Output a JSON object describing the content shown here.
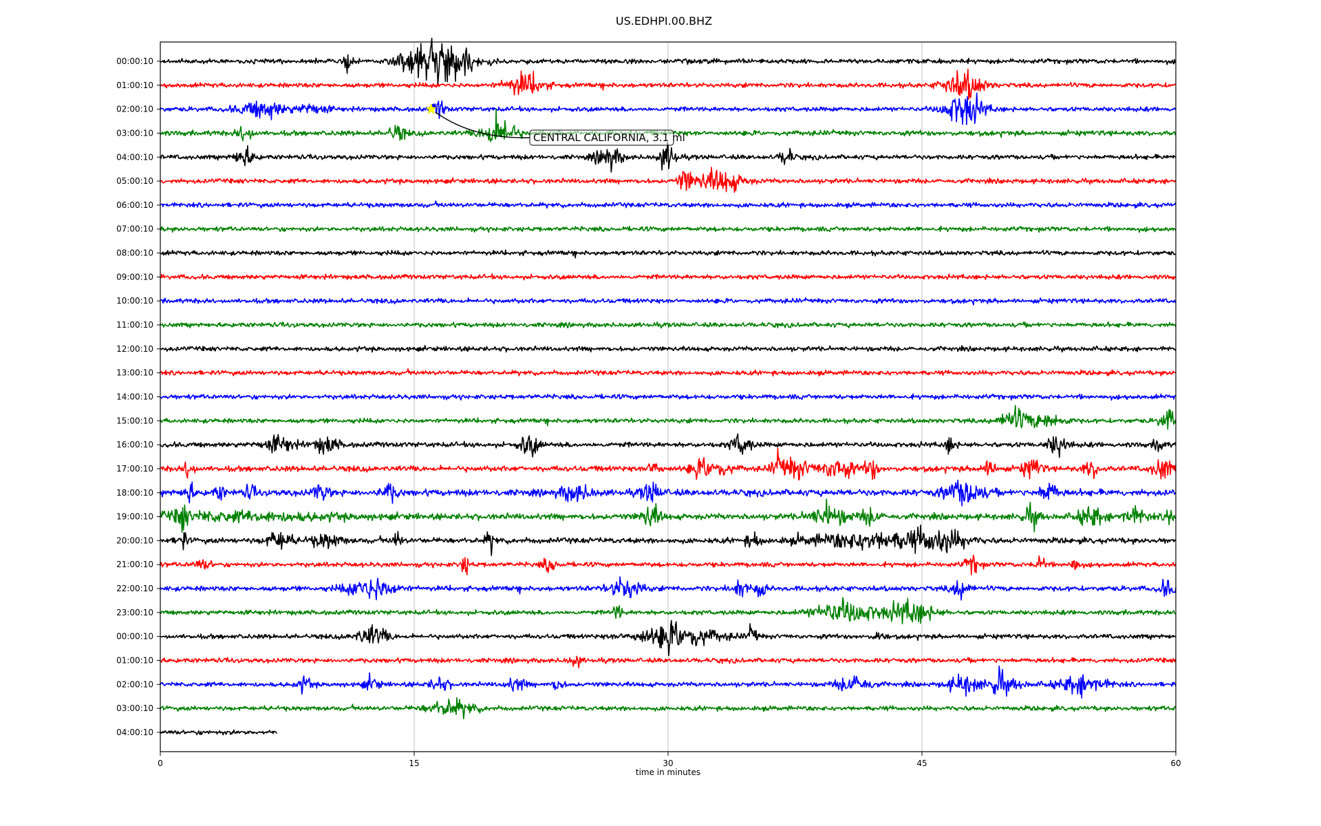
{
  "chart_data": {
    "type": "line",
    "title": "US.EDHPI.00.BHZ",
    "xlabel": "time in minutes",
    "ylabel": "",
    "xlim": [
      0,
      60
    ],
    "xticks": [
      0,
      15,
      30,
      45,
      60
    ],
    "grid_x": true,
    "colors": [
      "#000000",
      "#ff0000",
      "#0000ff",
      "#008000"
    ],
    "annotation": {
      "text": "CENTRAL CALIFORNIA, 3.1 ml",
      "row": 2,
      "minute": 16.0,
      "marker_color": "#ffff00"
    },
    "series": [
      {
        "label": "00:00:10",
        "end": 60,
        "noise": 1.0,
        "events": [
          [
            11,
            14,
            0.3
          ],
          [
            15.5,
            22,
            1.5
          ],
          [
            17.5,
            20,
            1.5
          ]
        ]
      },
      {
        "label": "01:00:10",
        "end": 60,
        "noise": 1.0,
        "events": [
          [
            21.5,
            14,
            1.2
          ],
          [
            47.5,
            18,
            1.2
          ]
        ]
      },
      {
        "label": "02:00:10",
        "end": 60,
        "noise": 1.0,
        "events": [
          [
            6,
            10,
            1.5
          ],
          [
            9,
            6,
            1.0
          ],
          [
            16.5,
            10,
            0.4
          ],
          [
            47.5,
            22,
            1.2
          ]
        ]
      },
      {
        "label": "03:00:10",
        "end": 60,
        "noise": 1.1,
        "events": [
          [
            5,
            10,
            0.5
          ],
          [
            14,
            10,
            0.5
          ],
          [
            20,
            22,
            1.0
          ]
        ]
      },
      {
        "label": "04:00:10",
        "end": 60,
        "noise": 1.0,
        "events": [
          [
            5,
            12,
            0.6
          ],
          [
            26.5,
            14,
            0.8
          ],
          [
            30,
            18,
            0.5
          ],
          [
            37,
            12,
            0.4
          ]
        ]
      },
      {
        "label": "05:00:10",
        "end": 60,
        "noise": 1.0,
        "events": [
          [
            31,
            14,
            0.4
          ],
          [
            33,
            14,
            1.5
          ]
        ]
      },
      {
        "label": "06:00:10",
        "end": 60,
        "noise": 1.0,
        "events": []
      },
      {
        "label": "07:00:10",
        "end": 60,
        "noise": 1.0,
        "events": []
      },
      {
        "label": "08:00:10",
        "end": 60,
        "noise": 1.0,
        "events": []
      },
      {
        "label": "09:00:10",
        "end": 60,
        "noise": 1.0,
        "events": []
      },
      {
        "label": "10:00:10",
        "end": 60,
        "noise": 1.0,
        "events": []
      },
      {
        "label": "11:00:10",
        "end": 60,
        "noise": 1.0,
        "events": []
      },
      {
        "label": "12:00:10",
        "end": 60,
        "noise": 1.0,
        "events": []
      },
      {
        "label": "13:00:10",
        "end": 60,
        "noise": 1.0,
        "events": []
      },
      {
        "label": "14:00:10",
        "end": 60,
        "noise": 1.0,
        "events": []
      },
      {
        "label": "15:00:10",
        "end": 60,
        "noise": 1.0,
        "events": [
          [
            50.5,
            14,
            1.0
          ],
          [
            52.5,
            10,
            1.0
          ],
          [
            59.5,
            14,
            0.5
          ]
        ]
      },
      {
        "label": "16:00:10",
        "end": 60,
        "noise": 1.1,
        "events": [
          [
            7,
            10,
            1.0
          ],
          [
            9.8,
            10,
            0.8
          ],
          [
            21.8,
            14,
            0.6
          ],
          [
            34.3,
            14,
            0.6
          ],
          [
            46.7,
            12,
            0.3
          ],
          [
            53,
            14,
            0.6
          ],
          [
            59,
            10,
            0.3
          ]
        ]
      },
      {
        "label": "17:00:10",
        "end": 60,
        "noise": 1.2,
        "events": [
          [
            1.7,
            14,
            0.3
          ],
          [
            29.2,
            12,
            0.4
          ],
          [
            32.5,
            12,
            1.2
          ],
          [
            36.5,
            12,
            0.4
          ],
          [
            37.5,
            12,
            1.0
          ],
          [
            40,
            14,
            1.0
          ],
          [
            42,
            14,
            0.4
          ],
          [
            49,
            10,
            0.5
          ],
          [
            51.5,
            12,
            0.6
          ],
          [
            55,
            10,
            0.5
          ],
          [
            59.2,
            14,
            0.6
          ]
        ]
      },
      {
        "label": "18:00:10",
        "end": 60,
        "noise": 1.4,
        "events": [
          [
            1.7,
            14,
            0.3
          ],
          [
            3.5,
            10,
            0.3
          ],
          [
            5.3,
            10,
            0.3
          ],
          [
            9.5,
            10,
            0.5
          ],
          [
            13.5,
            12,
            0.5
          ],
          [
            24.5,
            10,
            1.0
          ],
          [
            29,
            12,
            0.6
          ],
          [
            47.5,
            16,
            1.2
          ],
          [
            52.5,
            12,
            0.6
          ]
        ]
      },
      {
        "label": "19:00:10",
        "end": 60,
        "noise": 1.3,
        "events": [
          [
            1.3,
            14,
            0.3
          ],
          [
            4,
            5,
            7.0
          ],
          [
            29,
            14,
            0.6
          ],
          [
            39.5,
            12,
            1.2
          ],
          [
            42,
            10,
            0.6
          ],
          [
            51.5,
            12,
            0.5
          ],
          [
            55,
            12,
            0.8
          ],
          [
            57.5,
            10,
            0.8
          ],
          [
            59.8,
            14,
            0.4
          ]
        ]
      },
      {
        "label": "20:00:10",
        "end": 60,
        "noise": 1.2,
        "events": [
          [
            1.3,
            12,
            0.3
          ],
          [
            7,
            12,
            0.8
          ],
          [
            9.8,
            8,
            1.0
          ],
          [
            14,
            10,
            0.3
          ],
          [
            19.5,
            12,
            0.3
          ],
          [
            35,
            10,
            0.4
          ],
          [
            42,
            10,
            4.0
          ],
          [
            45.5,
            10,
            1.5
          ],
          [
            47,
            6,
            1.0
          ]
        ]
      },
      {
        "label": "21:00:10",
        "end": 60,
        "noise": 1.0,
        "events": [
          [
            2.5,
            6,
            0.6
          ],
          [
            18,
            12,
            0.3
          ],
          [
            23,
            8,
            0.5
          ],
          [
            48,
            10,
            0.5
          ],
          [
            52,
            14,
            0.3
          ],
          [
            54,
            10,
            0.3
          ]
        ]
      },
      {
        "label": "22:00:10",
        "end": 60,
        "noise": 1.1,
        "events": [
          [
            12.5,
            14,
            1.5
          ],
          [
            27.5,
            14,
            1.0
          ],
          [
            34.3,
            10,
            0.6
          ],
          [
            35.5,
            12,
            0.3
          ],
          [
            47.3,
            12,
            0.6
          ],
          [
            59.5,
            10,
            0.5
          ]
        ]
      },
      {
        "label": "23:00:10",
        "end": 60,
        "noise": 1.0,
        "events": [
          [
            27,
            10,
            0.3
          ],
          [
            40.5,
            14,
            2.0
          ],
          [
            44.3,
            14,
            1.5
          ]
        ]
      },
      {
        "label": "00:00:10",
        "end": 60,
        "noise": 1.0,
        "events": [
          [
            12.5,
            12,
            1.0
          ],
          [
            30.5,
            16,
            2.5
          ],
          [
            35,
            12,
            0.3
          ],
          [
            42.5,
            8,
            0.3
          ]
        ]
      },
      {
        "label": "01:00:10",
        "end": 60,
        "noise": 1.0,
        "events": [
          [
            24.5,
            6,
            0.4
          ]
        ]
      },
      {
        "label": "02:00:10",
        "end": 60,
        "noise": 1.0,
        "events": [
          [
            8.5,
            8,
            0.5
          ],
          [
            12.5,
            8,
            0.5
          ],
          [
            16.5,
            8,
            0.6
          ],
          [
            21,
            8,
            0.6
          ],
          [
            23.5,
            10,
            0.3
          ],
          [
            41,
            12,
            1.0
          ],
          [
            47.5,
            12,
            1.0
          ],
          [
            49.5,
            14,
            0.3
          ],
          [
            50,
            8,
            1.0
          ],
          [
            54.5,
            12,
            1.5
          ]
        ]
      },
      {
        "label": "03:00:10",
        "end": 60,
        "noise": 1.0,
        "events": [
          [
            17.2,
            10,
            1.5
          ]
        ]
      },
      {
        "label": "04:00:10",
        "end": 6.9,
        "noise": 1.0,
        "events": []
      }
    ]
  }
}
